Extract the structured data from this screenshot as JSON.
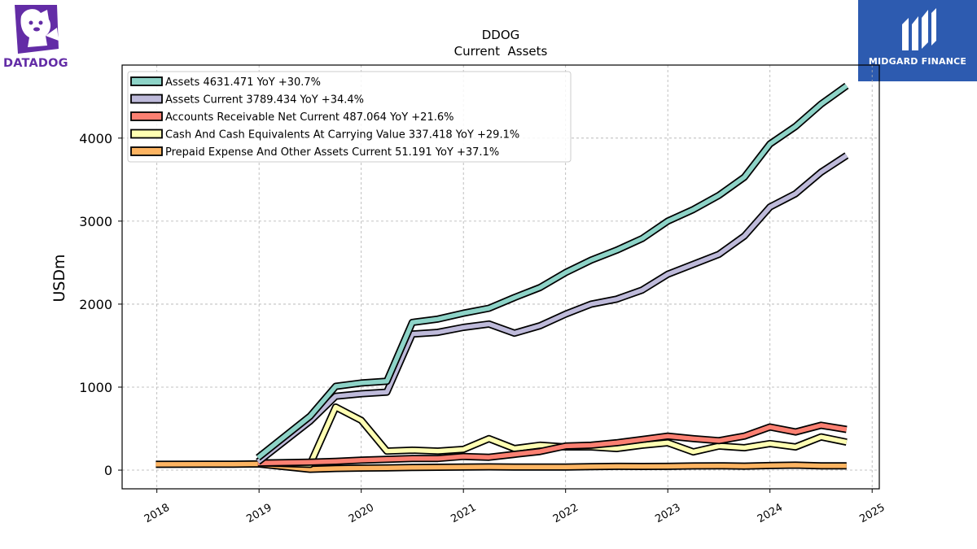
{
  "brand_left": {
    "name": "DATADOG",
    "icon": "datadog-dog-icon",
    "color": "#632ca6"
  },
  "brand_right": {
    "name": "MIDGARD FINANCE",
    "icon": "midgard-finance-icon",
    "color": "#2d5bb0"
  },
  "chart_data": {
    "type": "line",
    "title": "DDOG",
    "subtitle": "Current  Assets",
    "xlabel": "",
    "ylabel": "USDm",
    "xlim": [
      2017.66,
      2025.07
    ],
    "ylim": [
      -225,
      4880
    ],
    "x_ticks": [
      "2018",
      "2019",
      "2020",
      "2021",
      "2022",
      "2023",
      "2024",
      "2025"
    ],
    "y_ticks": [
      "0",
      "1000",
      "2000",
      "3000",
      "4000"
    ],
    "grid": true,
    "legend_position": "top-left",
    "series": [
      {
        "name": "Assets",
        "legend_label": "Assets  4631.471 YoY +30.7%",
        "color": "#8dd3c7",
        "x": [
          2018.99,
          2019.5,
          2019.75,
          2020.0,
          2020.25,
          2020.5,
          2020.75,
          2021.0,
          2021.25,
          2021.5,
          2021.75,
          2022.0,
          2022.25,
          2022.5,
          2022.75,
          2023.0,
          2023.25,
          2023.5,
          2023.75,
          2024.0,
          2024.25,
          2024.5,
          2024.75
        ],
        "y": [
          150,
          650,
          1010,
          1050,
          1070,
          1780,
          1820,
          1890,
          1950,
          2080,
          2200,
          2380,
          2530,
          2650,
          2790,
          3000,
          3140,
          3310,
          3530,
          3930,
          4140,
          4410,
          4630
        ]
      },
      {
        "name": "Assets Current",
        "legend_label": "Assets Current  3789.434 YoY +34.4%",
        "color": "#bebada",
        "x": [
          2018.99,
          2019.5,
          2019.75,
          2020.0,
          2020.25,
          2020.5,
          2020.75,
          2021.0,
          2021.25,
          2021.5,
          2021.75,
          2022.0,
          2022.25,
          2022.5,
          2022.75,
          2023.0,
          2023.25,
          2023.5,
          2023.75,
          2024.0,
          2024.25,
          2024.5,
          2024.75
        ],
        "y": [
          100,
          590,
          890,
          920,
          940,
          1640,
          1660,
          1720,
          1760,
          1650,
          1740,
          1880,
          2000,
          2060,
          2170,
          2360,
          2480,
          2600,
          2820,
          3170,
          3330,
          3590,
          3790
        ]
      },
      {
        "name": "Accounts Receivable Net Current",
        "legend_label": "Accounts Receivable Net Current  487.064 YoY +21.6%",
        "color": "#fb8072",
        "x": [
          2018.99,
          2019.5,
          2019.75,
          2020.0,
          2020.25,
          2020.5,
          2020.75,
          2021.0,
          2021.25,
          2021.5,
          2021.75,
          2022.0,
          2022.25,
          2022.5,
          2022.75,
          2023.0,
          2023.25,
          2023.5,
          2023.75,
          2024.0,
          2024.25,
          2024.5,
          2024.75
        ],
        "y": [
          85,
          95,
          105,
          120,
          130,
          140,
          140,
          165,
          155,
          190,
          225,
          290,
          300,
          330,
          370,
          410,
          380,
          355,
          410,
          520,
          460,
          540,
          490
        ]
      },
      {
        "name": "Cash And Cash Equivalents At Carrying Value",
        "legend_label": "Cash And Cash Equivalents At Carrying Value  337.418 YoY +29.1%",
        "color": "#ffffb3",
        "x": [
          2018.99,
          2019.5,
          2019.75,
          2020.0,
          2020.25,
          2020.5,
          2020.75,
          2021.0,
          2021.25,
          2021.5,
          2021.75,
          2022.0,
          2022.25,
          2022.5,
          2022.75,
          2023.0,
          2023.25,
          2023.5,
          2023.75,
          2024.0,
          2024.25,
          2024.5,
          2024.75
        ],
        "y": [
          90,
          70,
          760,
          600,
          230,
          240,
          230,
          250,
          380,
          260,
          300,
          280,
          280,
          260,
          300,
          330,
          220,
          290,
          270,
          320,
          280,
          400,
          337
        ]
      },
      {
        "name": "Prepaid Expense And Other Assets Current",
        "legend_label": "Prepaid Expense And Other Assets Current  51.191 YoY +37.1%",
        "color": "#fdb462",
        "x": [
          2017.99,
          2018.75,
          2018.99,
          2019.5,
          2019.75,
          2020.0,
          2020.25,
          2020.5,
          2020.75,
          2021.0,
          2021.25,
          2021.5,
          2021.75,
          2022.0,
          2022.25,
          2022.5,
          2022.75,
          2023.0,
          2023.25,
          2023.5,
          2023.75,
          2024.0,
          2024.25,
          2024.5,
          2024.75
        ],
        "y": [
          70,
          72,
          75,
          10,
          20,
          25,
          28,
          32,
          35,
          38,
          40,
          38,
          37,
          38,
          42,
          45,
          44,
          45,
          50,
          52,
          48,
          55,
          60,
          51,
          51
        ]
      }
    ]
  }
}
